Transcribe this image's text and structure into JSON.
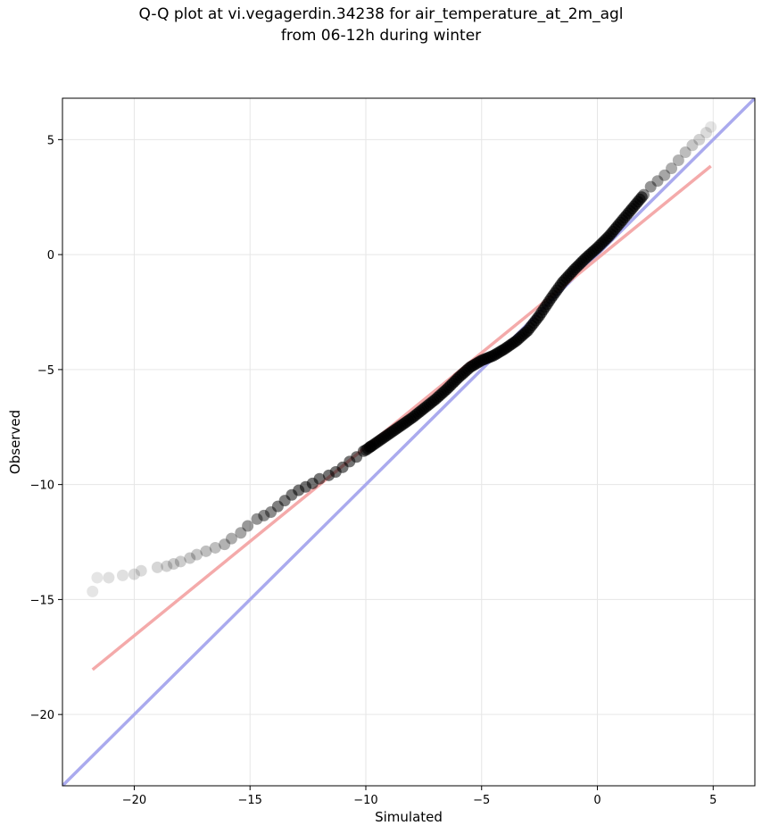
{
  "chart_data": {
    "type": "scatter",
    "title_line1": "Q-Q plot at vi.vegagerdin.34238 for air_temperature_at_2m_agl",
    "title_line2": "from 06-12h during winter",
    "xlabel": "Simulated",
    "ylabel": "Observed",
    "xlim": [
      -23.1,
      6.8
    ],
    "ylim": [
      -23.1,
      6.8
    ],
    "x_ticks": [
      -20,
      -15,
      -10,
      -5,
      0,
      5
    ],
    "y_ticks": [
      -20,
      -15,
      -10,
      -5,
      0,
      5
    ],
    "x_tick_labels": [
      "−20",
      "−15",
      "−10",
      "−5",
      "0",
      "5"
    ],
    "y_tick_labels": [
      "−20",
      "−15",
      "−10",
      "−5",
      "0",
      "5"
    ],
    "grid": true,
    "point_color": "#000000",
    "identity_line": {
      "x": [
        -23.1,
        6.8
      ],
      "y": [
        -23.1,
        6.8
      ],
      "color": "#aaaaee"
    },
    "fit_line": {
      "x": [
        -21.8,
        4.9
      ],
      "y": [
        -18.05,
        3.85
      ],
      "color": "#f4aaaa"
    },
    "tail_points": {
      "x": [
        -21.8,
        -21.6,
        -21.1,
        -20.5,
        -20.0,
        -19.7,
        -19.0,
        -18.6,
        -18.3,
        -18.0,
        -17.6,
        -17.3,
        -16.9,
        -16.5,
        -16.1,
        -15.8,
        -15.4,
        -15.1,
        -14.7,
        -14.4,
        -14.1,
        -13.8,
        -13.5,
        -13.2,
        -12.9,
        -12.6,
        -12.3,
        -12.0,
        -11.6,
        -11.3,
        -11.0,
        -10.7,
        -10.4,
        -10.1,
        -9.8
      ],
      "y": [
        -14.65,
        -14.05,
        -14.05,
        -13.95,
        -13.9,
        -13.75,
        -13.6,
        -13.55,
        -13.45,
        -13.35,
        -13.2,
        -13.05,
        -12.9,
        -12.75,
        -12.6,
        -12.35,
        -12.1,
        -11.8,
        -11.5,
        -11.35,
        -11.2,
        -10.95,
        -10.7,
        -10.45,
        -10.25,
        -10.1,
        -9.95,
        -9.75,
        -9.6,
        -9.45,
        -9.25,
        -9.0,
        -8.8,
        -8.55,
        -8.35
      ],
      "opacity": [
        0.1,
        0.1,
        0.12,
        0.12,
        0.14,
        0.14,
        0.16,
        0.18,
        0.2,
        0.2,
        0.22,
        0.22,
        0.25,
        0.25,
        0.3,
        0.32,
        0.35,
        0.4,
        0.42,
        0.45,
        0.45,
        0.5,
        0.5,
        0.52,
        0.55,
        0.55,
        0.55,
        0.55,
        0.55,
        0.55,
        0.55,
        0.55,
        0.55,
        0.55,
        0.55
      ]
    },
    "curve_points": {
      "x": [
        -10.0,
        -9.5,
        -9.0,
        -8.5,
        -8.0,
        -7.5,
        -7.0,
        -6.5,
        -6.0,
        -5.5,
        -5.0,
        -4.5,
        -4.0,
        -3.5,
        -3.0,
        -2.5,
        -2.0,
        -1.5,
        -1.0,
        -0.5,
        0.0,
        0.5,
        1.0,
        1.5,
        2.0
      ],
      "y": [
        -8.5,
        -8.15,
        -7.8,
        -7.45,
        -7.1,
        -6.7,
        -6.3,
        -5.85,
        -5.35,
        -4.9,
        -4.6,
        -4.4,
        -4.1,
        -3.75,
        -3.3,
        -2.65,
        -1.9,
        -1.2,
        -0.65,
        -0.15,
        0.3,
        0.8,
        1.4,
        2.0,
        2.6
      ]
    },
    "upper_tail_points": {
      "x": [
        2.0,
        2.3,
        2.6,
        2.9,
        3.2,
        3.5,
        3.8,
        4.1,
        4.4,
        4.7,
        4.9
      ],
      "y": [
        2.6,
        2.95,
        3.2,
        3.45,
        3.75,
        4.1,
        4.45,
        4.75,
        5.0,
        5.3,
        5.55
      ],
      "opacity": [
        0.45,
        0.42,
        0.38,
        0.35,
        0.32,
        0.3,
        0.26,
        0.22,
        0.18,
        0.14,
        0.1
      ]
    }
  }
}
